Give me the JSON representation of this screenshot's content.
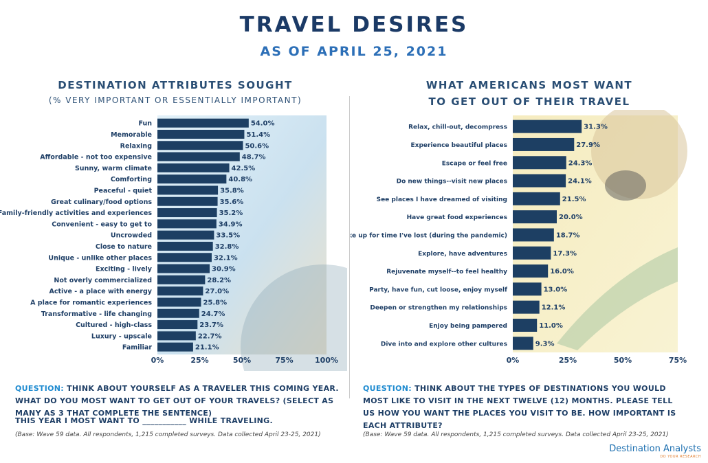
{
  "header": {
    "title": "TRAVEL DESIRES",
    "subtitle": "AS OF APRIL 25, 2021"
  },
  "left": {
    "title": "DESTINATION ATTRIBUTES SOUGHT",
    "subtitle": "(% VERY IMPORTANT OR ESSENTIALLY IMPORTANT)",
    "question_lead": "QUESTION:",
    "question_text": " THINK ABOUT YOURSELF AS A TRAVELER THIS COMING YEAR.  WHAT DO YOU MOST WANT TO GET OUT OF YOUR TRAVELS? (SELECT AS MANY AS 3 THAT COMPLETE THE SENTENCE)",
    "sentence": "THIS YEAR I MOST WANT TO ___________ WHILE TRAVELING.",
    "base": "(Base: Wave 59 data. All respondents, 1,215 completed surveys. Data collected April 23-25, 2021)"
  },
  "right": {
    "title_line1": "WHAT AMERICANS MOST WANT",
    "title_line2": "TO GET OUT OF THEIR TRAVEL",
    "question_lead": "QUESTION:",
    "question_text": " THINK ABOUT THE TYPES OF DESTINATIONS YOU WOULD MOST LIKE TO VISIT IN THE NEXT TWELVE (12) MONTHS. PLEASE TELL US HOW YOU WANT THE PLACES YOU VISIT TO BE.  HOW IMPORTANT IS EACH ATTRIBUTE?",
    "base": "(Base: Wave 59 data. All respondents, 1,215 completed surveys. Data collected April 23-25, 2021)"
  },
  "logo": {
    "name": "Destination Analysts",
    "tagline": "DO YOUR RESEARCH"
  },
  "colors": {
    "bar": "#1d3f63",
    "title": "#1b3a66",
    "accent": "#2c6fb7",
    "question_lead": "#1f8bd0"
  },
  "chart_data": [
    {
      "type": "bar",
      "orientation": "horizontal",
      "categories": [
        "Fun",
        "Memorable",
        "Relaxing",
        "Affordable - not too expensive",
        "Sunny, warm climate",
        "Comforting",
        "Peaceful - quiet",
        "Great culinary/food options",
        "Family-friendly activities and experiences",
        "Convenient - easy to get to",
        "Uncrowded",
        "Close to nature",
        "Unique - unlike other places",
        "Exciting - lively",
        "Not overly commercialized",
        "Active -  a place with energy",
        "A place for romantic experiences",
        "Transformative - life changing",
        "Cultured - high-class",
        "Luxury - upscale",
        "Familiar"
      ],
      "values": [
        54.0,
        51.4,
        50.6,
        48.7,
        42.5,
        40.8,
        35.8,
        35.6,
        35.2,
        34.9,
        33.5,
        32.8,
        32.1,
        30.9,
        28.2,
        27.0,
        25.8,
        24.7,
        23.7,
        22.7,
        21.1
      ],
      "value_labels": [
        "54.0%",
        "51.4%",
        "50.6%",
        "48.7%",
        "42.5%",
        "40.8%",
        "35.8%",
        "35.6%",
        "35.2%",
        "34.9%",
        "33.5%",
        "32.8%",
        "32.1%",
        "30.9%",
        "28.2%",
        "27.0%",
        "25.8%",
        "24.7%",
        "23.7%",
        "22.7%",
        "21.1%"
      ],
      "xticks": [
        "0%",
        "25%",
        "50%",
        "75%",
        "100%"
      ],
      "xlim": [
        0,
        100
      ]
    },
    {
      "type": "bar",
      "orientation": "horizontal",
      "categories": [
        "Relax, chill-out, decompress",
        "Experience beautiful places",
        "Escape or feel free",
        "Do new things--visit new places",
        "See places I have dreamed of visiting",
        "Have great food experiences",
        "Make up for time I've lost (during the pandemic)",
        "Explore, have adventures",
        "Rejuvenate myself--to feel healthy",
        "Party, have fun, cut loose, enjoy myself",
        "Deepen or strengthen my relationships",
        "Enjoy being pampered",
        "Dive into and explore other cultures"
      ],
      "values": [
        31.3,
        27.9,
        24.3,
        24.1,
        21.5,
        20.0,
        18.7,
        17.3,
        16.0,
        13.0,
        12.1,
        11.0,
        9.3
      ],
      "value_labels": [
        "31.3%",
        "27.9%",
        "24.3%",
        "24.1%",
        "21.5%",
        "20.0%",
        "18.7%",
        "17.3%",
        "16.0%",
        "13.0%",
        "12.1%",
        "11.0%",
        "9.3%"
      ],
      "xticks": [
        "0%",
        "25%",
        "50%",
        "75%"
      ],
      "xlim": [
        0,
        75
      ]
    }
  ]
}
